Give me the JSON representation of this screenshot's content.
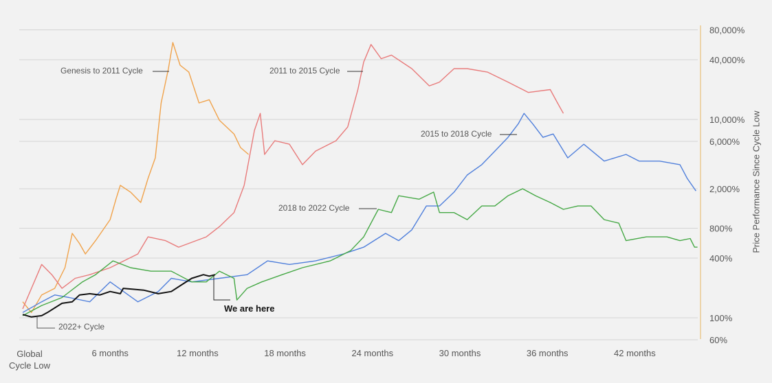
{
  "chart_data": {
    "type": "line",
    "title": "",
    "xlabel": "",
    "ylabel": "Price Performance Since Cycle Low",
    "y_scale": "log",
    "ylim": [
      50,
      90000
    ],
    "xlim": [
      0,
      46
    ],
    "grid": true,
    "x_ticks": [
      {
        "value": 0,
        "label": "Global\nCycle Low"
      },
      {
        "value": 6,
        "label": "6 months"
      },
      {
        "value": 12,
        "label": "12 months"
      },
      {
        "value": 18,
        "label": "18 months"
      },
      {
        "value": 24,
        "label": "24 months"
      },
      {
        "value": 30,
        "label": "30 months"
      },
      {
        "value": 36,
        "label": "36 months"
      },
      {
        "value": 42,
        "label": "42 months"
      }
    ],
    "y_ticks": [
      {
        "value": 80000,
        "label": "80,000%"
      },
      {
        "value": 40000,
        "label": "40,000%"
      },
      {
        "value": 10000,
        "label": "10,000%"
      },
      {
        "value": 6000,
        "label": "6,000%"
      },
      {
        "value": 2000,
        "label": "2,000%"
      },
      {
        "value": 800,
        "label": "800%"
      },
      {
        "value": 400,
        "label": "400%"
      },
      {
        "value": 100,
        "label": "100%"
      },
      {
        "value": 60,
        "label": "60%"
      }
    ],
    "series": [
      {
        "name": "Genesis to 2011 Cycle",
        "color": "#f0a24a",
        "x": [
          0,
          0.6,
          1.3,
          2.2,
          2.9,
          3.4,
          3.9,
          4.3,
          5.0,
          6.0,
          6.4,
          6.7,
          7.4,
          8.1,
          8.6,
          9.1,
          9.5,
          10.0,
          10.3,
          10.8,
          11.4,
          12.1,
          12.8,
          13.5,
          14.5,
          14.95,
          15.5
        ],
        "y": [
          145,
          113,
          170,
          198,
          320,
          710,
          560,
          440,
          600,
          977,
          1570,
          2165,
          1850,
          1455,
          2540,
          4100,
          14650,
          32500,
          59600,
          35200,
          30000,
          14650,
          15800,
          9800,
          7130,
          5200,
          4440
        ]
      },
      {
        "name": "2011 to 2015 Cycle",
        "color": "#e87a7a",
        "x": [
          0,
          1.3,
          2,
          2.7,
          3.6,
          4.6,
          6,
          7.9,
          8.6,
          9.8,
          10.7,
          12.6,
          13.5,
          14.5,
          15.2,
          15.9,
          16.3,
          16.6,
          17.3,
          18.3,
          19.2,
          20.1,
          21.5,
          22.3,
          23,
          23.4,
          23.9,
          24.6,
          25.3,
          26.7,
          27.9,
          28.6,
          29.6,
          30.5,
          31.9,
          33.3,
          34.7,
          36.2,
          36.7,
          37.1
        ],
        "y": [
          123,
          345,
          272,
          198,
          250,
          272,
          320,
          440,
          655,
          600,
          515,
          655,
          830,
          1150,
          2165,
          7750,
          11500,
          4440,
          6100,
          5630,
          3500,
          4800,
          6100,
          8400,
          20000,
          38000,
          57000,
          41000,
          44500,
          32500,
          21800,
          23800,
          32500,
          32500,
          30000,
          23800,
          18700,
          20000,
          14650,
          11500
        ]
      },
      {
        "name": "2015 to 2018 Cycle",
        "color": "#4f7fdb",
        "x": [
          0,
          1.3,
          2.2,
          3.2,
          4.6,
          6.0,
          7.9,
          9.3,
          10.2,
          11.6,
          13.5,
          15.4,
          16.8,
          18.3,
          20.1,
          22.0,
          23.4,
          24.9,
          25.8,
          26.7,
          27.7,
          28.6,
          29.6,
          30.5,
          31.5,
          32.4,
          33.3,
          34.0,
          34.4,
          35.0,
          35.7,
          36.4,
          37.4,
          38.5,
          39.9,
          41.4,
          42.3,
          43.7,
          45.1,
          45.6,
          46.2
        ],
        "y": [
          113,
          145,
          170,
          160,
          145,
          230,
          145,
          184,
          250,
          230,
          250,
          272,
          375,
          345,
          375,
          440,
          515,
          710,
          600,
          770,
          1340,
          1340,
          1850,
          2750,
          3500,
          4800,
          6600,
          9000,
          11500,
          9000,
          6600,
          7130,
          4100,
          5630,
          3800,
          4440,
          3800,
          3800,
          3500,
          2540,
          1900
        ]
      },
      {
        "name": "2018 to 2022 Cycle",
        "color": "#45a845",
        "x": [
          0,
          1.3,
          2.7,
          4.1,
          5.0,
          6.2,
          7.4,
          8.8,
          10.2,
          11.6,
          12.6,
          13.5,
          14.5,
          14.7,
          15.4,
          16.4,
          17.8,
          19.2,
          21.1,
          22.5,
          23.4,
          24.4,
          25.3,
          25.8,
          27.2,
          28.2,
          28.6,
          29.6,
          30.5,
          31.5,
          32.4,
          33.3,
          34.3,
          35.2,
          36.2,
          37.1,
          38.1,
          39.0,
          39.9,
          40.9,
          41.4,
          42.8,
          44.2,
          45.1,
          45.8,
          46.1,
          46.3
        ],
        "y": [
          105,
          133,
          160,
          230,
          272,
          375,
          320,
          295,
          295,
          230,
          230,
          295,
          250,
          151,
          198,
          230,
          272,
          320,
          375,
          475,
          655,
          1240,
          1150,
          1700,
          1570,
          1850,
          1150,
          1150,
          977,
          1340,
          1340,
          1700,
          2000,
          1700,
          1455,
          1240,
          1340,
          1340,
          977,
          900,
          600,
          655,
          655,
          600,
          630,
          515,
          515
        ]
      },
      {
        "name": "2022+ Cycle",
        "color": "#111111",
        "x": [
          0,
          0.6,
          1.3,
          1.7,
          2.7,
          3.4,
          3.9,
          4.6,
          5.3,
          6.0,
          6.7,
          6.9,
          8.3,
          9.3,
          10.2,
          10.9,
          11.6,
          12.4,
          12.8,
          13.2
        ],
        "y": [
          108,
          102,
          105,
          113,
          140,
          145,
          170,
          175,
          170,
          184,
          175,
          198,
          190,
          175,
          184,
          215,
          250,
          272,
          263,
          272
        ]
      }
    ],
    "annotations": [
      "Genesis to 2011 Cycle",
      "2011 to 2015 Cycle",
      "2015 to 2018 Cycle",
      "2018 to 2022 Cycle",
      "2022+ Cycle",
      "We are here"
    ],
    "axis_color": "#e8c07a",
    "grid_color": "#d4d4d4"
  }
}
